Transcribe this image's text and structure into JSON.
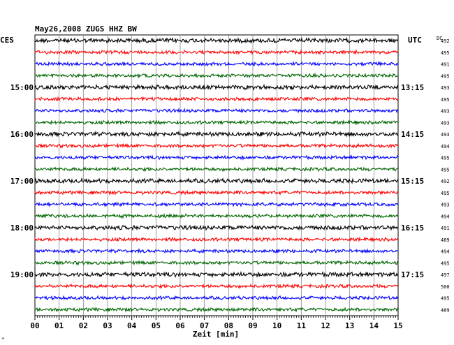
{
  "chart_data": {
    "type": "line",
    "title": "May26,2008   ZUGS HHZ BW",
    "xlabel": "Zeit [min]",
    "ylabel": "",
    "left_timezone": "CES",
    "right_timezone": "UTC",
    "dc_label": "DC",
    "corner_mark": "^",
    "xlim": [
      0,
      15
    ],
    "x_ticks": [
      "00",
      "01",
      "02",
      "03",
      "04",
      "05",
      "06",
      "07",
      "08",
      "09",
      "10",
      "11",
      "12",
      "13",
      "14",
      "15"
    ],
    "trace_colors": [
      "#000000",
      "#ff0000",
      "#0000ff",
      "#006600"
    ],
    "left_hour_labels": [
      {
        "row": 4,
        "label": "15:00"
      },
      {
        "row": 8,
        "label": "16:00"
      },
      {
        "row": 12,
        "label": "17:00"
      },
      {
        "row": 16,
        "label": "18:00"
      },
      {
        "row": 20,
        "label": "19:00"
      }
    ],
    "right_hour_labels": [
      {
        "row": 4,
        "label": "13:15"
      },
      {
        "row": 8,
        "label": "14:15"
      },
      {
        "row": 12,
        "label": "15:15"
      },
      {
        "row": 16,
        "label": "16:15"
      },
      {
        "row": 20,
        "label": "17:15"
      }
    ],
    "dc_values": [
      "492",
      "495",
      "491",
      "495",
      "493",
      "495",
      "493",
      "493",
      "493",
      "494",
      "495",
      "495",
      "492",
      "495",
      "493",
      "494",
      "491",
      "489",
      "494",
      "495",
      "497",
      "500",
      "495",
      "489"
    ]
  }
}
